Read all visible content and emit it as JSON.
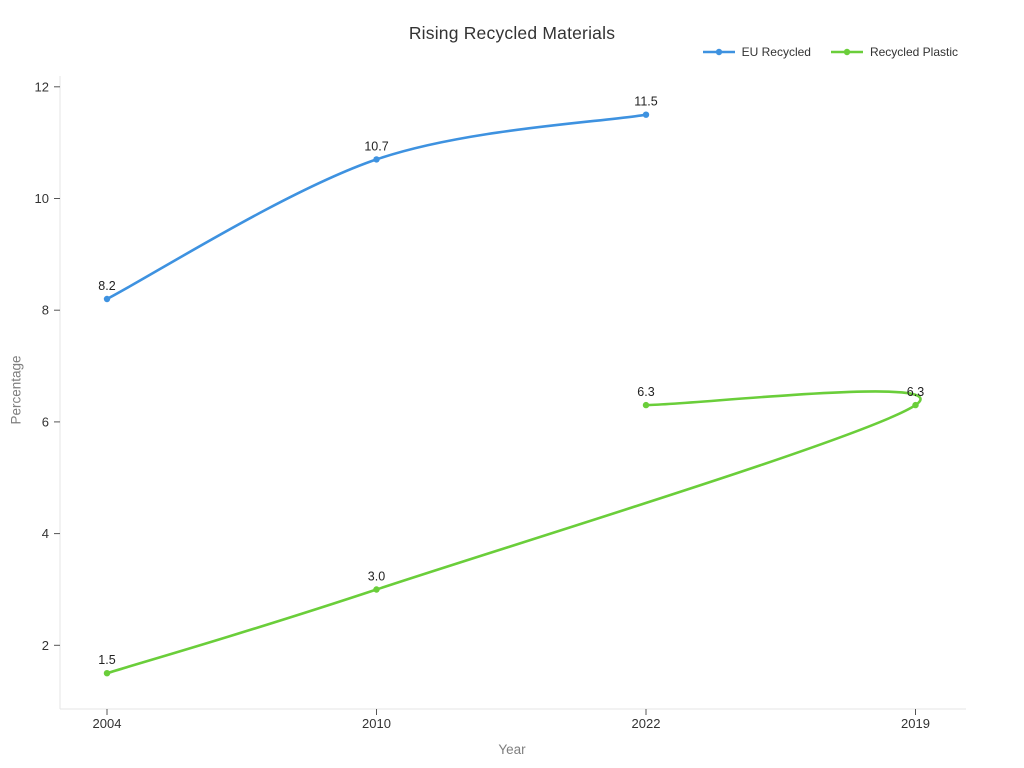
{
  "chart_data": {
    "type": "line",
    "title": "Rising Recycled Materials",
    "xlabel": "Year",
    "ylabel": "Percentage",
    "x_categories": [
      "2004",
      "2010",
      "2022",
      "2019"
    ],
    "yticks": [
      2,
      4,
      6,
      8,
      10,
      12
    ],
    "ylim": [
      0.85,
      12.2
    ],
    "line_shape": "spline",
    "grid": false,
    "legend_position": "top-right",
    "background_color": "#ffffff",
    "axis_line_color": "#e6e6e6",
    "tick_color": "#555555",
    "tick_label_color": "#333333",
    "data_label_color": "#222222",
    "series": [
      {
        "name": "EU Recycled",
        "color": "#3e92e0",
        "points": [
          {
            "x": "2004",
            "y": 8.2,
            "label": "8.2"
          },
          {
            "x": "2010",
            "y": 10.7,
            "label": "10.7"
          },
          {
            "x": "2022",
            "y": 11.5,
            "label": "11.5"
          }
        ]
      },
      {
        "name": "Recycled Plastic",
        "color": "#6ace3a",
        "points": [
          {
            "x": "2004",
            "y": 1.5,
            "label": "1.5"
          },
          {
            "x": "2010",
            "y": 3.0,
            "label": "3.0"
          },
          {
            "x": "2019",
            "y": 6.3,
            "label": "6.3"
          },
          {
            "x": "2022",
            "y": 6.3,
            "label": "6.3"
          }
        ]
      }
    ]
  }
}
